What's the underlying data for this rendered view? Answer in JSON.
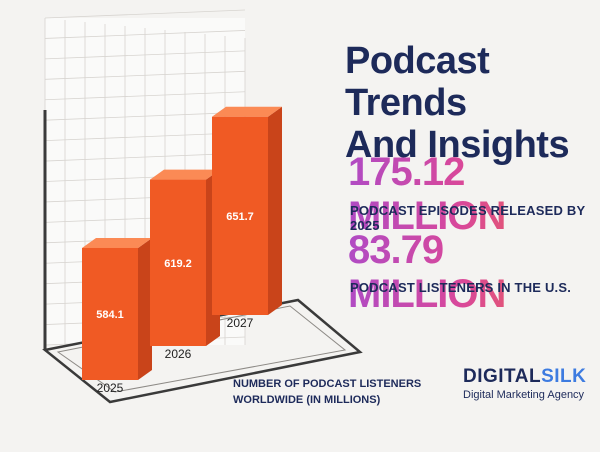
{
  "title_line1": "Podcast Trends",
  "title_line2": "And Insights",
  "stats": [
    {
      "value": "175.12 MILLION",
      "caption": "PODCAST EPISODES RELEASED BY 2025"
    },
    {
      "value": "83.79 MILLION",
      "caption": "PODCAST LISTENERS IN THE U.S."
    }
  ],
  "chart_caption_line1": "NUMBER OF PODCAST LISTENERS",
  "chart_caption_line2": "WORLDWIDE (IN MILLIONS)",
  "brand": {
    "name_part1": "DIGITAL",
    "name_part2": "SILK",
    "tagline": "Digital Marketing Agency"
  },
  "colors": {
    "bar_front": "#f05a24",
    "bar_side": "#c9441a",
    "bar_top": "#fb8a55",
    "title": "#1d2a5a",
    "accent": "#3d7be0"
  },
  "chart_data": {
    "type": "bar",
    "categories": [
      "2025",
      "2026",
      "2027"
    ],
    "values": [
      584.1,
      619.2,
      651.7
    ],
    "data_labels": [
      "584.1",
      "619.2",
      "651.7"
    ],
    "title": "",
    "xlabel": "",
    "ylabel": "",
    "grid": true,
    "style": "3d"
  }
}
